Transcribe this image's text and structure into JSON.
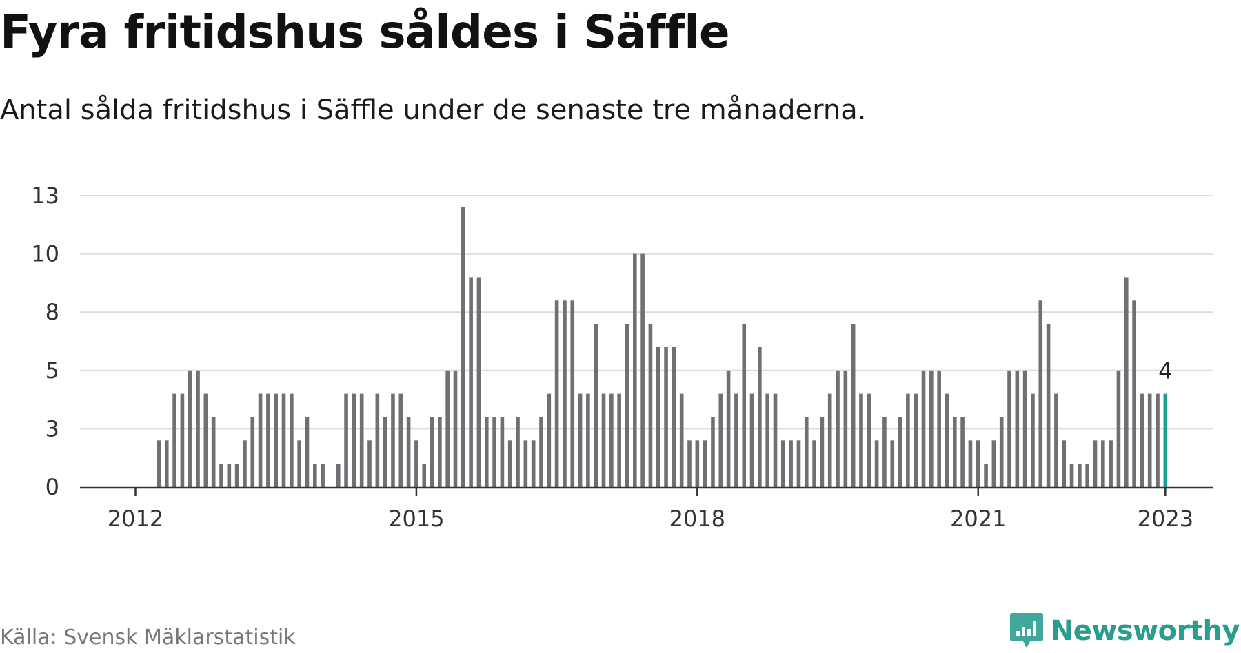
{
  "title": "Fyra fritidshus såldes i Säffle",
  "subtitle": "Antal sålda fritidshus i Säffle under de senaste tre månaderna.",
  "source": "Källa: Svensk Mäklarstatistik",
  "brand": {
    "name": "Newsworthy",
    "icon": "newsworthy-logo-icon",
    "color": "#2a9d8f"
  },
  "colors": {
    "bar": "#6f6f74",
    "highlight": "#1a9e96",
    "grid": "#dcdcdc",
    "axis": "#333333"
  },
  "chart_data": {
    "type": "bar",
    "x_axis": {
      "start": "2012-01",
      "end": "2023-01",
      "ticks": [
        "2012",
        "2015",
        "2018",
        "2021",
        "2023"
      ],
      "tick_months": [
        "2012-01",
        "2015-01",
        "2018-01",
        "2021-01",
        "2023-01"
      ]
    },
    "y_axis": {
      "ticks": [
        "0",
        "3",
        "5",
        "8",
        "10",
        "13"
      ],
      "tick_values": [
        0,
        2.5,
        5,
        7.5,
        10,
        12.5
      ],
      "ylim": [
        0,
        12.5
      ]
    },
    "grid": true,
    "annotation": {
      "month": "2023-01",
      "label": "4"
    },
    "highlight_month": "2023-01",
    "months": [
      "2012-01",
      "2012-02",
      "2012-03",
      "2012-04",
      "2012-05",
      "2012-06",
      "2012-07",
      "2012-08",
      "2012-09",
      "2012-10",
      "2012-11",
      "2012-12",
      "2013-01",
      "2013-02",
      "2013-03",
      "2013-04",
      "2013-05",
      "2013-06",
      "2013-07",
      "2013-08",
      "2013-09",
      "2013-10",
      "2013-11",
      "2013-12",
      "2014-01",
      "2014-02",
      "2014-03",
      "2014-04",
      "2014-05",
      "2014-06",
      "2014-07",
      "2014-08",
      "2014-09",
      "2014-10",
      "2014-11",
      "2014-12",
      "2015-01",
      "2015-02",
      "2015-03",
      "2015-04",
      "2015-05",
      "2015-06",
      "2015-07",
      "2015-08",
      "2015-09",
      "2015-10",
      "2015-11",
      "2015-12",
      "2016-01",
      "2016-02",
      "2016-03",
      "2016-04",
      "2016-05",
      "2016-06",
      "2016-07",
      "2016-08",
      "2016-09",
      "2016-10",
      "2016-11",
      "2016-12",
      "2017-01",
      "2017-02",
      "2017-03",
      "2017-04",
      "2017-05",
      "2017-06",
      "2017-07",
      "2017-08",
      "2017-09",
      "2017-10",
      "2017-11",
      "2017-12",
      "2018-01",
      "2018-02",
      "2018-03",
      "2018-04",
      "2018-05",
      "2018-06",
      "2018-07",
      "2018-08",
      "2018-09",
      "2018-10",
      "2018-11",
      "2018-12",
      "2019-01",
      "2019-02",
      "2019-03",
      "2019-04",
      "2019-05",
      "2019-06",
      "2019-07",
      "2019-08",
      "2019-09",
      "2019-10",
      "2019-11",
      "2019-12",
      "2020-01",
      "2020-02",
      "2020-03",
      "2020-04",
      "2020-05",
      "2020-06",
      "2020-07",
      "2020-08",
      "2020-09",
      "2020-10",
      "2020-11",
      "2020-12",
      "2021-01",
      "2021-02",
      "2021-03",
      "2021-04",
      "2021-05",
      "2021-06",
      "2021-07",
      "2021-08",
      "2021-09",
      "2021-10",
      "2021-11",
      "2021-12",
      "2022-01",
      "2022-02",
      "2022-03",
      "2022-04",
      "2022-05",
      "2022-06",
      "2022-07",
      "2022-08",
      "2022-09",
      "2022-10",
      "2022-11",
      "2022-12",
      "2023-01"
    ],
    "values": [
      0,
      0,
      0,
      2,
      2,
      4,
      4,
      5,
      5,
      4,
      3,
      1,
      1,
      1,
      2,
      3,
      4,
      4,
      4,
      4,
      4,
      2,
      3,
      1,
      1,
      0,
      1,
      4,
      4,
      4,
      2,
      4,
      3,
      4,
      4,
      3,
      2,
      1,
      3,
      3,
      5,
      5,
      12,
      9,
      9,
      3,
      3,
      3,
      2,
      3,
      2,
      2,
      3,
      4,
      8,
      8,
      8,
      4,
      4,
      7,
      4,
      4,
      4,
      7,
      10,
      10,
      7,
      6,
      6,
      6,
      4,
      2,
      2,
      2,
      3,
      4,
      5,
      4,
      7,
      4,
      6,
      4,
      4,
      2,
      2,
      2,
      3,
      2,
      3,
      4,
      5,
      5,
      7,
      4,
      4,
      2,
      3,
      2,
      3,
      4,
      4,
      5,
      5,
      5,
      4,
      3,
      3,
      2,
      2,
      1,
      2,
      3,
      5,
      5,
      5,
      4,
      8,
      7,
      4,
      2,
      1,
      1,
      1,
      2,
      2,
      2,
      5,
      9,
      8,
      4,
      4,
      4,
      4
    ]
  }
}
